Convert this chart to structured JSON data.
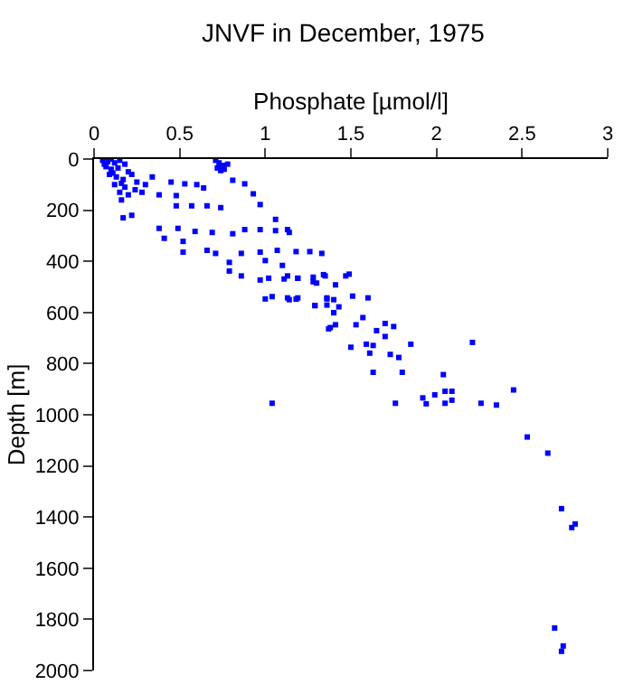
{
  "chart_data": {
    "type": "scatter",
    "title": "JNVF in December, 1975",
    "xlabel": "Phosphate [µmol/l]",
    "ylabel": "Depth [m]",
    "x": [
      0.05,
      0.08,
      0.1,
      0.12,
      0.15,
      0.07,
      0.1,
      0.14,
      0.18,
      0.2,
      0.09,
      0.13,
      0.17,
      0.22,
      0.25,
      0.12,
      0.18,
      0.24,
      0.28,
      0.2,
      0.3,
      0.15,
      0.06,
      0.11,
      0.16,
      0.71,
      0.73,
      0.75,
      0.76,
      0.74,
      0.78,
      0.72,
      0.16,
      0.22,
      0.17,
      0.34,
      0.45,
      0.53,
      0.6,
      0.64,
      0.81,
      0.88,
      0.93,
      0.97,
      1.06,
      1.13,
      0.38,
      0.48,
      0.57,
      0.66,
      0.74,
      0.48,
      0.38,
      0.41,
      0.49,
      0.59,
      0.69,
      0.81,
      0.88,
      0.97,
      1.06,
      1.14,
      0.52,
      0.52,
      0.66,
      0.71,
      0.86,
      0.97,
      1.07,
      1.18,
      1.26,
      1.33,
      0.79,
      0.86,
      0.97,
      1.02,
      1.1,
      1.11,
      1.19,
      1.28,
      1.35,
      0.79,
      1.0,
      1.0,
      1.04,
      1.14,
      1.19,
      1.29,
      1.36,
      1.38,
      1.4,
      1.13,
      1.19,
      1.28,
      1.34,
      1.47,
      1.49,
      1.3,
      1.41,
      1.13,
      1.18,
      1.36,
      1.4,
      1.51,
      1.6,
      1.29,
      1.36,
      1.43,
      1.4,
      1.41,
      1.53,
      1.57,
      1.65,
      1.7,
      1.75,
      1.37,
      1.5,
      1.59,
      1.63,
      1.61,
      1.73,
      1.78,
      1.7,
      1.85,
      2.21,
      1.63,
      1.8,
      2.04,
      1.92,
      1.99,
      2.05,
      2.09,
      1.94,
      2.05,
      2.09,
      1.76,
      2.26,
      2.35,
      2.45,
      2.53,
      2.65,
      2.73,
      2.79,
      2.81,
      2.69,
      2.74,
      2.73,
      1.04
    ],
    "series": [
      {
        "color": "#0000ff",
        "values": [
          5,
          10,
          0,
          15,
          5,
          30,
          40,
          35,
          20,
          50,
          60,
          70,
          80,
          60,
          90,
          100,
          110,
          120,
          130,
          140,
          100,
          130,
          20,
          55,
          95,
          5,
          15,
          25,
          40,
          45,
          20,
          35,
          160,
          220,
          230,
          70,
          90,
          97,
          100,
          113,
          83,
          97,
          136,
          178,
          236,
          276,
          140,
          143,
          183,
          183,
          190,
          183,
          271,
          310,
          271,
          283,
          287,
          292,
          276,
          276,
          280,
          287,
          322,
          364,
          357,
          369,
          369,
          364,
          357,
          362,
          362,
          369,
          438,
          457,
          473,
          466,
          416,
          469,
          466,
          480,
          457,
          404,
          397,
          547,
          538,
          550,
          543,
          573,
          547,
          659,
          601,
          457,
          466,
          462,
          452,
          457,
          450,
          485,
          492,
          543,
          548,
          543,
          550,
          536,
          543,
          573,
          571,
          578,
          601,
          648,
          648,
          620,
          671,
          643,
          655,
          664,
          736,
          724,
          729,
          759,
          764,
          776,
          694,
          724,
          717,
          834,
          834,
          843,
          934,
          922,
          908,
          908,
          957,
          955,
          943,
          955,
          955,
          962,
          903,
          1087,
          1150,
          1367,
          1441,
          1427,
          1834,
          1904,
          1925,
          955
        ]
      }
    ],
    "xlim": [
      0,
      3
    ],
    "xticks": [
      0,
      0.5,
      1,
      1.5,
      2,
      2.5,
      3
    ],
    "ylim": [
      2000,
      0
    ],
    "yticks": [
      0,
      200,
      400,
      600,
      800,
      1000,
      1200,
      1400,
      1600,
      1800,
      2000
    ],
    "marker": "square"
  }
}
